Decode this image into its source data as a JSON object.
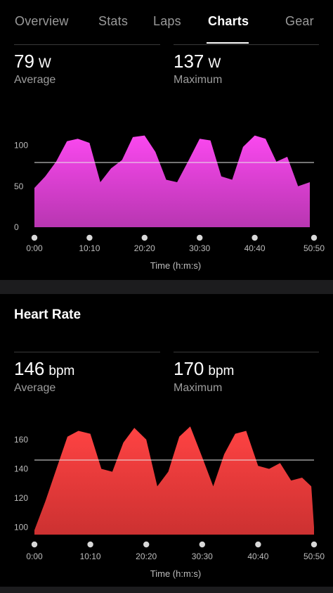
{
  "tabs": [
    {
      "label": "Overview",
      "active": false
    },
    {
      "label": "Stats",
      "active": false
    },
    {
      "label": "Laps",
      "active": false
    },
    {
      "label": "Charts",
      "active": true
    },
    {
      "label": "Gear",
      "active": false
    }
  ],
  "power": {
    "average_value": "79",
    "average_unit": "W",
    "average_label": "Average",
    "max_value": "137",
    "max_unit": "W",
    "max_label": "Maximum"
  },
  "heart_rate": {
    "title": "Heart Rate",
    "average_value": "146",
    "average_unit": "bpm",
    "average_label": "Average",
    "max_value": "170",
    "max_unit": "bpm",
    "max_label": "Maximum"
  },
  "chart_data": [
    {
      "type": "area",
      "xlabel": "Time (h:m:s)",
      "ylabel": "",
      "x_ticks": [
        "0:00",
        "10:10",
        "20:20",
        "30:30",
        "40:40",
        "50:50"
      ],
      "y_ticks": [
        0,
        50,
        100
      ],
      "ylim": [
        0,
        140
      ],
      "xlim": [
        0,
        3050
      ],
      "reference_line": 79,
      "color": "#d93fd0",
      "x": [
        0,
        120,
        240,
        360,
        480,
        610,
        730,
        850,
        970,
        1090,
        1220,
        1340,
        1460,
        1580,
        1700,
        1830,
        1950,
        2070,
        2190,
        2310,
        2440,
        2560,
        2680,
        2800,
        2920,
        3050
      ],
      "y": [
        48,
        62,
        80,
        105,
        108,
        103,
        55,
        72,
        82,
        110,
        112,
        92,
        58,
        55,
        80,
        108,
        106,
        62,
        58,
        98,
        112,
        108,
        80,
        86,
        50,
        55
      ]
    },
    {
      "type": "area",
      "xlabel": "Time (h:m:s)",
      "ylabel": "",
      "x_ticks": [
        "0:00",
        "10:10",
        "20:20",
        "30:30",
        "40:40",
        "50:50"
      ],
      "y_ticks": [
        100,
        120,
        140,
        160
      ],
      "ylim": [
        95,
        172
      ],
      "xlim": [
        0,
        3050
      ],
      "reference_line": 146,
      "color": "#f03a3a",
      "x": [
        0,
        120,
        240,
        360,
        480,
        610,
        730,
        850,
        970,
        1090,
        1220,
        1340,
        1460,
        1580,
        1700,
        1830,
        1950,
        2070,
        2190,
        2310,
        2440,
        2560,
        2680,
        2800,
        2920,
        3020,
        3050
      ],
      "y": [
        98,
        118,
        140,
        162,
        166,
        164,
        140,
        138,
        158,
        168,
        160,
        128,
        138,
        162,
        169,
        148,
        128,
        150,
        164,
        166,
        142,
        140,
        144,
        132,
        134,
        128,
        100
      ]
    }
  ]
}
